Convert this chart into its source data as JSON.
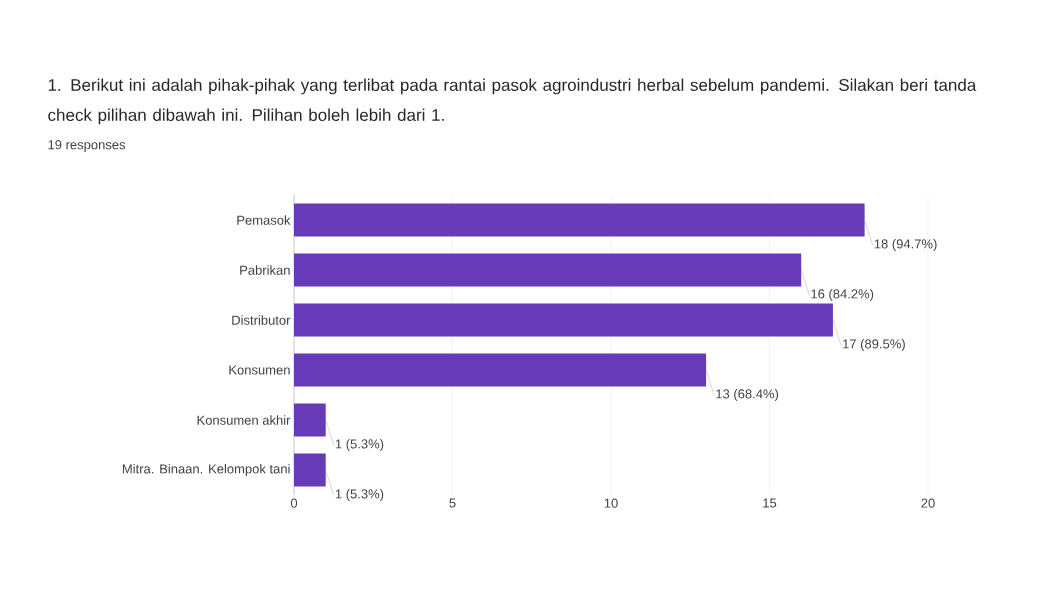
{
  "chart_data": {
    "type": "bar",
    "orientation": "horizontal",
    "title": "1. Berikut ini adalah pihak-pihak yang terlibat pada rantai pasok agroindustri herbal sebelum pandemi. Silakan beri tanda check pilihan dibawah ini. Pilihan boleh lebih dari 1.",
    "subtitle": "19 responses",
    "categories": [
      "Pemasok",
      "Pabrikan",
      "Distributor",
      "Konsumen",
      "Konsumen akhir",
      "Mitra. Binaan. Kelompok tani"
    ],
    "values": [
      18,
      16,
      17,
      13,
      1,
      1
    ],
    "value_labels": [
      "18 (94.7%)",
      "16 (84.2%)",
      "17 (89.5%)",
      "13 (68.4%)",
      "1 (5.3%)",
      "1 (5.3%)"
    ],
    "color": "#673ab7",
    "xlim": [
      0,
      20
    ],
    "xticks": [
      0,
      5,
      10,
      15,
      20
    ],
    "grid": "x"
  }
}
